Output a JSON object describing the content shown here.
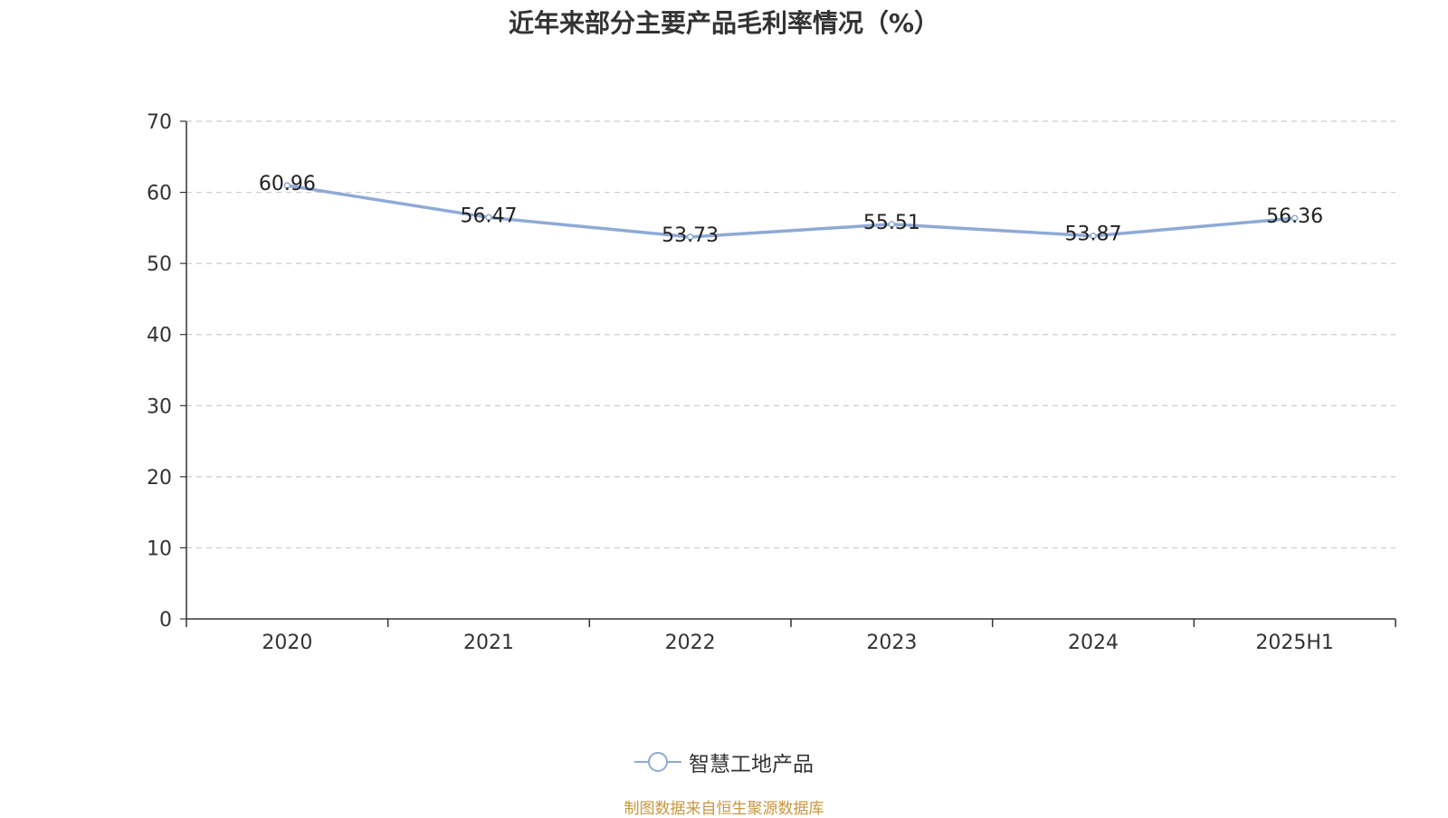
{
  "title": "近年来部分主要产品毛利率情况（%）",
  "legend_label": "智慧工地产品",
  "source_note": "制图数据来自恒生聚源数据库",
  "colors": {
    "series": "#8eaad6",
    "axis": "#333333",
    "grid": "#cccccc",
    "source_note": "#c8963e"
  },
  "chart_data": {
    "type": "line",
    "title": "近年来部分主要产品毛利率情况（%）",
    "xlabel": "",
    "ylabel": "",
    "categories": [
      "2020",
      "2021",
      "2022",
      "2023",
      "2024",
      "2025H1"
    ],
    "series": [
      {
        "name": "智慧工地产品",
        "values": [
          60.96,
          56.47,
          53.73,
          55.51,
          53.87,
          56.36
        ]
      }
    ],
    "data_labels": [
      "60.96",
      "56.47",
      "53.73",
      "55.51",
      "53.87",
      "56.36"
    ],
    "ylim": [
      0,
      70
    ],
    "yticks": [
      0,
      10,
      20,
      30,
      40,
      50,
      60,
      70
    ],
    "grid": true,
    "legend_position": "bottom"
  }
}
